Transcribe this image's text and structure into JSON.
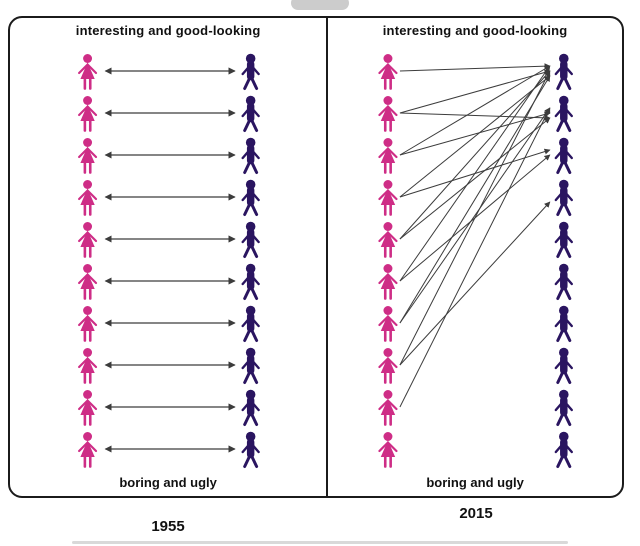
{
  "colors": {
    "female": "#ce2d86",
    "male": "#2a1560",
    "arrow": "#3c3c3c",
    "border": "#1b1b1b",
    "pill": "#cccccc",
    "bottom_bar": "#d9d9d9"
  },
  "panels": [
    {
      "year_label": "1955",
      "top_label": "interesting and good-looking",
      "bottom_label": "boring and ugly",
      "rows": 10,
      "arrow_style": "double",
      "connections": [
        {
          "from": 0,
          "to": 0
        },
        {
          "from": 1,
          "to": 1
        },
        {
          "from": 2,
          "to": 2
        },
        {
          "from": 3,
          "to": 3
        },
        {
          "from": 4,
          "to": 4
        },
        {
          "from": 5,
          "to": 5
        },
        {
          "from": 6,
          "to": 6
        },
        {
          "from": 7,
          "to": 7
        },
        {
          "from": 8,
          "to": 8
        },
        {
          "from": 9,
          "to": 9
        }
      ]
    },
    {
      "year_label": "2015",
      "top_label": "interesting and good-looking",
      "bottom_label": "boring and ugly",
      "rows": 10,
      "arrow_style": "single",
      "connections": [
        {
          "from": 0,
          "to": 0
        },
        {
          "from": 1,
          "to": 0
        },
        {
          "from": 1,
          "to": 1
        },
        {
          "from": 2,
          "to": 0
        },
        {
          "from": 2,
          "to": 1
        },
        {
          "from": 3,
          "to": 0
        },
        {
          "from": 3,
          "to": 2
        },
        {
          "from": 4,
          "to": 0
        },
        {
          "from": 4,
          "to": 1
        },
        {
          "from": 5,
          "to": 0
        },
        {
          "from": 5,
          "to": 2
        },
        {
          "from": 6,
          "to": 0
        },
        {
          "from": 6,
          "to": 1
        },
        {
          "from": 7,
          "to": 0
        },
        {
          "from": 7,
          "to": 3
        },
        {
          "from": 8,
          "to": 1
        }
      ]
    }
  ]
}
